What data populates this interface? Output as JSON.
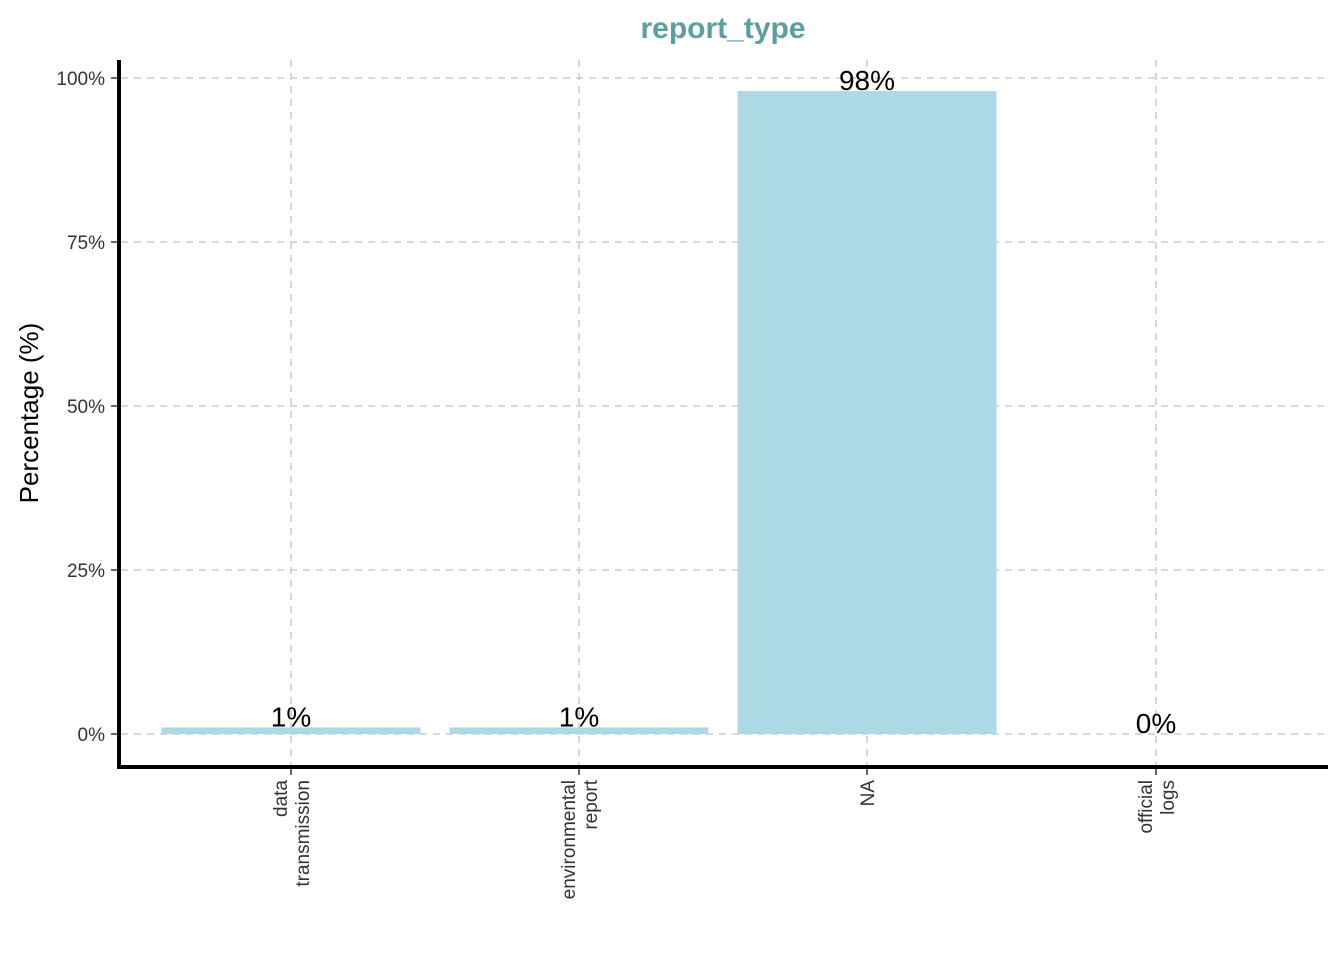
{
  "chart_data": {
    "type": "bar",
    "title": "report_type",
    "xlabel": "",
    "ylabel": "Percentage (%)",
    "categories": [
      [
        "data",
        "transmission"
      ],
      [
        "environmental",
        "report"
      ],
      [
        "NA"
      ],
      [
        "official",
        "logs"
      ]
    ],
    "values": [
      1,
      1,
      98,
      0
    ],
    "data_labels": [
      "1%",
      "1%",
      "98%",
      "0%"
    ],
    "ylim": [
      0,
      100
    ],
    "yticks": [
      0,
      25,
      50,
      75,
      100
    ],
    "ytick_labels": [
      "0%",
      "25%",
      "50%",
      "75%",
      "100%"
    ],
    "grid": true,
    "legend": "none",
    "colors": {
      "bar": "#add8e6",
      "title": "#5f9ea0",
      "grid": "#cccccc",
      "axis": "#000000"
    }
  }
}
